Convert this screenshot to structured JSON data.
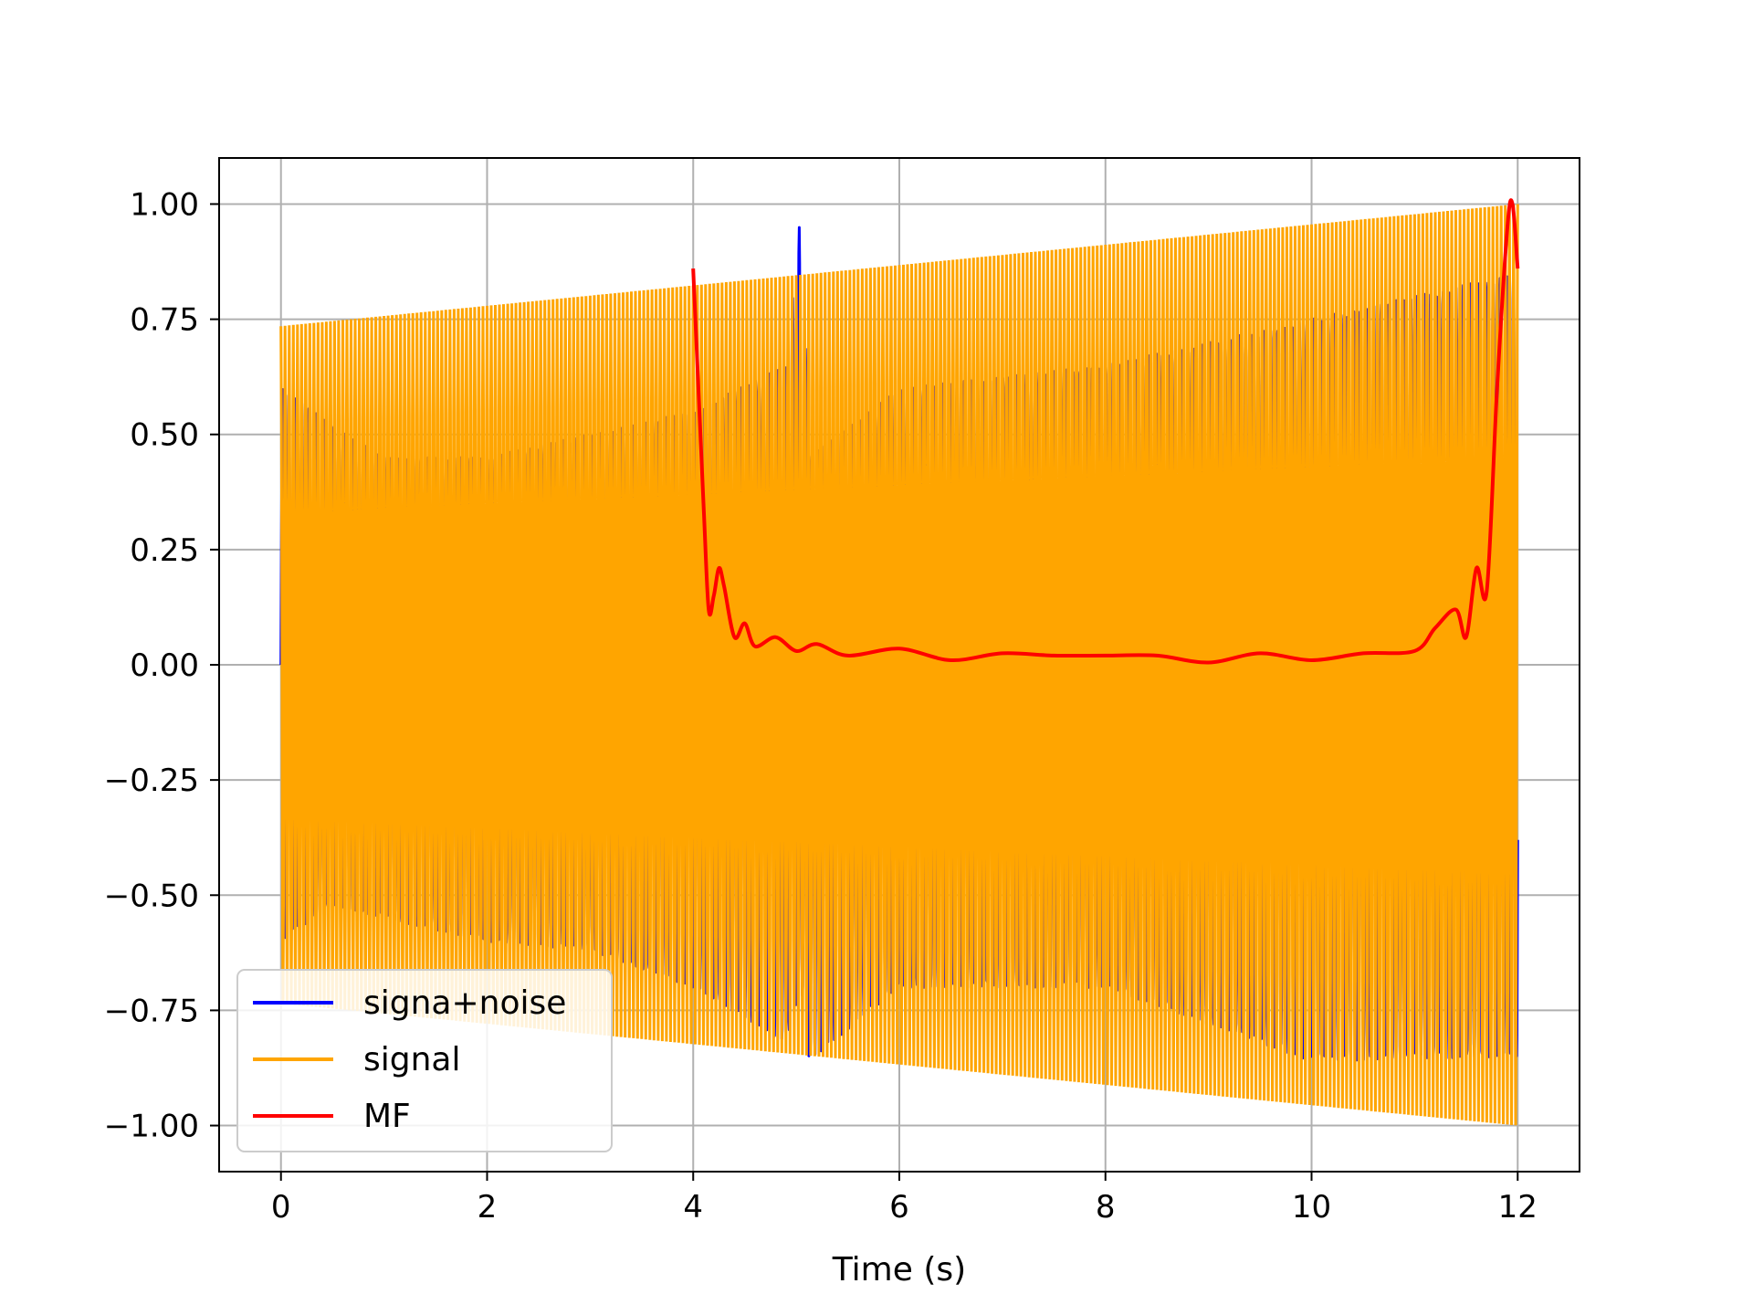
{
  "chart_data": {
    "type": "line",
    "title": "",
    "xlabel": "Time (s)",
    "ylabel": "",
    "xlim": [
      -0.6,
      12.6
    ],
    "ylim": [
      -1.1,
      1.1
    ],
    "grid": true,
    "legend_placement": "lower-left",
    "x_ticks": [
      0,
      2,
      4,
      6,
      8,
      10,
      12
    ],
    "x_tick_labels": [
      "0",
      "2",
      "4",
      "6",
      "8",
      "10",
      "12"
    ],
    "y_ticks": [
      1.0,
      0.75,
      0.5,
      0.25,
      0.0,
      -0.25,
      -0.5,
      -0.75,
      -1.0
    ],
    "y_tick_labels": [
      "1.00",
      "0.75",
      "0.50",
      "0.25",
      "0.00",
      "−0.25",
      "−0.50",
      "−0.75",
      "−1.00"
    ],
    "series": [
      {
        "name": "signa+noise",
        "color": "#0000ff",
        "x": [
          0,
          0.5,
          1,
          2,
          3,
          4,
          4.9,
          5.05,
          5.12,
          6,
          8,
          10,
          12
        ],
        "y_max": [
          0.6,
          0.52,
          0.45,
          0.45,
          0.5,
          0.55,
          0.65,
          1.0,
          0.45,
          0.6,
          0.65,
          0.75,
          0.85
        ],
        "y_min": [
          -0.6,
          -0.52,
          -0.55,
          -0.6,
          -0.62,
          -0.7,
          -0.82,
          -0.7,
          -0.86,
          -0.7,
          -0.7,
          -0.86,
          -0.85
        ]
      },
      {
        "name": "signal",
        "color": "#ffa500",
        "x": [
          0,
          12
        ],
        "envelope": [
          0.735,
          1.0
        ]
      },
      {
        "name": "MF",
        "color": "#ff0000",
        "x": [
          4.0,
          4.1,
          4.15,
          4.2,
          4.25,
          4.3,
          4.4,
          4.5,
          4.6,
          4.8,
          5.0,
          5.2,
          5.5,
          6.0,
          6.5,
          7.0,
          7.5,
          8.0,
          8.5,
          9.0,
          9.5,
          10.0,
          10.5,
          11.0,
          11.2,
          11.4,
          11.5,
          11.6,
          11.7,
          11.8,
          11.9,
          11.95,
          12.0
        ],
        "y": [
          0.86,
          0.35,
          0.12,
          0.15,
          0.21,
          0.17,
          0.06,
          0.09,
          0.04,
          0.06,
          0.03,
          0.045,
          0.02,
          0.035,
          0.01,
          0.025,
          0.02,
          0.02,
          0.02,
          0.005,
          0.025,
          0.01,
          0.025,
          0.03,
          0.08,
          0.12,
          0.06,
          0.21,
          0.16,
          0.6,
          0.95,
          1.0,
          0.86
        ]
      }
    ]
  }
}
